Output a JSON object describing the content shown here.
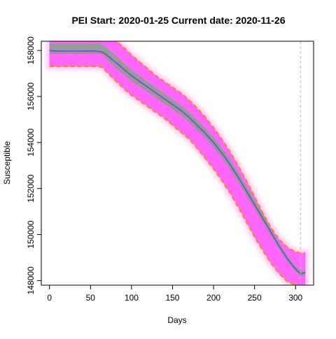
{
  "chart_data": {
    "type": "line",
    "title": "PEI Start:  2020-01-25   Current date:  2020-11-26",
    "xlabel": "Days",
    "ylabel": "Susceptible",
    "xlim": [
      -10,
      322
    ],
    "ylim": [
      147800,
      158400
    ],
    "xticks": [
      0,
      50,
      100,
      150,
      200,
      250,
      300
    ],
    "yticks": [
      148000,
      150000,
      152000,
      154000,
      156000,
      158000
    ],
    "current_day": 306,
    "colors": {
      "band": "#ff66ff",
      "band_glow": "#ffccff",
      "bounds": "#ff8800",
      "inner_band": "#999999",
      "median": "#6a4fcf",
      "vline": "#bbbbbb"
    },
    "series": [
      {
        "role": "median",
        "x": [
          0,
          10,
          20,
          30,
          40,
          50,
          60,
          65,
          70,
          80,
          90,
          100,
          110,
          120,
          130,
          140,
          150,
          160,
          170,
          180,
          190,
          200,
          210,
          220,
          230,
          240,
          250,
          260,
          270,
          280,
          290,
          300,
          306,
          312
        ],
        "values": [
          158000,
          157970,
          157970,
          157975,
          157970,
          157980,
          157960,
          157920,
          157800,
          157500,
          157200,
          156900,
          156650,
          156400,
          156150,
          155900,
          155650,
          155400,
          155100,
          154750,
          154400,
          154000,
          153550,
          153050,
          152500,
          151900,
          151300,
          150700,
          150100,
          149500,
          148950,
          148500,
          148300,
          148350
        ]
      },
      {
        "role": "inner-upper",
        "x": [
          0,
          10,
          20,
          30,
          40,
          50,
          60,
          65,
          70,
          80,
          90,
          100,
          110,
          120,
          130,
          140,
          150,
          160,
          170,
          180,
          190,
          200,
          210,
          220,
          230,
          240,
          250,
          260,
          270,
          280,
          290,
          300,
          306,
          312
        ],
        "values": [
          158300,
          158300,
          158300,
          158300,
          158300,
          158300,
          158300,
          158250,
          158100,
          157800,
          157450,
          157150,
          156880,
          156620,
          156370,
          156120,
          155870,
          155620,
          155320,
          154970,
          154620,
          154220,
          153770,
          153270,
          152720,
          152120,
          151500,
          150880,
          150260,
          149650,
          149080,
          148620,
          148420,
          148470
        ]
      },
      {
        "role": "inner-lower",
        "x": [
          0,
          10,
          20,
          30,
          40,
          50,
          60,
          65,
          70,
          80,
          90,
          100,
          110,
          120,
          130,
          140,
          150,
          160,
          170,
          180,
          190,
          200,
          210,
          220,
          230,
          240,
          250,
          260,
          270,
          280,
          290,
          300,
          306,
          312
        ],
        "values": [
          157850,
          157850,
          157850,
          157850,
          157850,
          157850,
          157850,
          157780,
          157600,
          157250,
          156950,
          156650,
          156420,
          156180,
          155930,
          155680,
          155430,
          155180,
          154880,
          154530,
          154180,
          153780,
          153330,
          152830,
          152280,
          151680,
          151100,
          150520,
          149940,
          149350,
          148820,
          148380,
          148180,
          148230
        ]
      },
      {
        "role": "upper-bound",
        "x": [
          0,
          10,
          20,
          30,
          40,
          50,
          60,
          65,
          70,
          75,
          80,
          90,
          100,
          110,
          120,
          130,
          140,
          150,
          160,
          170,
          180,
          190,
          200,
          210,
          220,
          230,
          240,
          250,
          260,
          270,
          280,
          290,
          300,
          306,
          312
        ],
        "values": [
          158500,
          158500,
          158500,
          158500,
          158500,
          158500,
          158500,
          158500,
          158500,
          158500,
          158450,
          158150,
          157800,
          157500,
          157200,
          156900,
          156650,
          156400,
          156150,
          155850,
          155500,
          155100,
          154650,
          154150,
          153600,
          153000,
          152350,
          151650,
          150950,
          150300,
          149800,
          149450,
          149250,
          149200,
          149200
        ]
      },
      {
        "role": "lower-bound",
        "x": [
          0,
          10,
          20,
          30,
          40,
          50,
          60,
          65,
          70,
          80,
          90,
          100,
          110,
          120,
          130,
          140,
          150,
          160,
          170,
          180,
          190,
          200,
          210,
          220,
          230,
          240,
          250,
          260,
          270,
          280,
          290,
          300,
          306,
          312
        ],
        "values": [
          157300,
          157300,
          157300,
          157300,
          157300,
          157300,
          157300,
          157250,
          157050,
          156700,
          156350,
          156050,
          155800,
          155550,
          155300,
          155050,
          154750,
          154450,
          154150,
          153750,
          153300,
          152850,
          152350,
          151800,
          151200,
          150550,
          149900,
          149300,
          148750,
          148300,
          147950,
          147800,
          147700,
          147700
        ]
      }
    ],
    "grid": false,
    "legend": "none"
  }
}
